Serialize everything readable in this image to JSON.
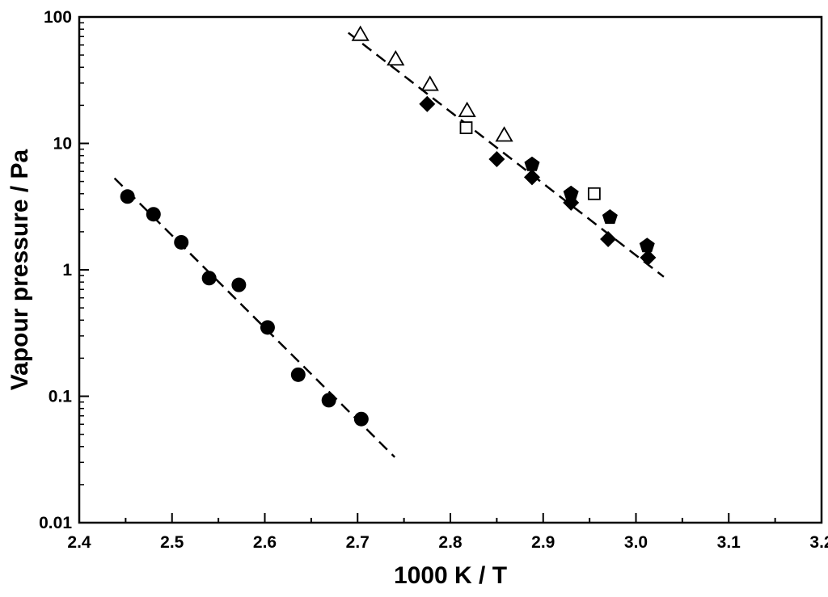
{
  "chart_data": {
    "type": "scatter",
    "title": "",
    "xlabel": "1000 K / T",
    "ylabel": "Vapour pressure / Pa",
    "xlim": [
      2.4,
      3.2
    ],
    "ylim": [
      0.01,
      100
    ],
    "yscale": "log",
    "grid": false,
    "legend": "none",
    "x_ticks": [
      "2.4",
      "2.5",
      "2.6",
      "2.7",
      "2.8",
      "2.9",
      "3.0",
      "3.1",
      "3.2"
    ],
    "y_ticks": [
      "0.01",
      "0.1",
      "1",
      "10",
      "100"
    ],
    "colors": {
      "axis": "#000000",
      "marker": "#000000",
      "hollow_fill": "#ffffff",
      "fit_line": "#000000"
    },
    "series": [
      {
        "marker": "filled-circle",
        "x": [
          2.452,
          2.48,
          2.51,
          2.54,
          2.572,
          2.603,
          2.636,
          2.669,
          2.704
        ],
        "y": [
          3.8,
          2.75,
          1.65,
          0.86,
          0.76,
          0.35,
          0.148,
          0.093,
          0.066
        ]
      },
      {
        "marker": "open-triangle",
        "x": [
          2.703,
          2.741,
          2.778,
          2.818,
          2.858
        ],
        "y": [
          72,
          46,
          29,
          18,
          11.5
        ]
      },
      {
        "marker": "filled-diamond",
        "x": [
          2.775,
          2.85,
          2.888,
          2.93,
          2.97,
          3.013
        ],
        "y": [
          20.5,
          7.5,
          5.4,
          3.4,
          1.75,
          1.25
        ]
      },
      {
        "marker": "filled-pentagon",
        "x": [
          2.888,
          2.93,
          2.972,
          3.012
        ],
        "y": [
          6.8,
          4.0,
          2.6,
          1.55
        ]
      },
      {
        "marker": "open-square",
        "x": [
          2.817,
          2.955
        ],
        "y": [
          13.3,
          4.0
        ]
      }
    ],
    "fit_lines": [
      {
        "x": [
          2.438,
          2.74
        ],
        "y": [
          5.3,
          0.033
        ]
      },
      {
        "x": [
          2.69,
          3.03
        ],
        "y": [
          75,
          0.88
        ]
      }
    ]
  }
}
